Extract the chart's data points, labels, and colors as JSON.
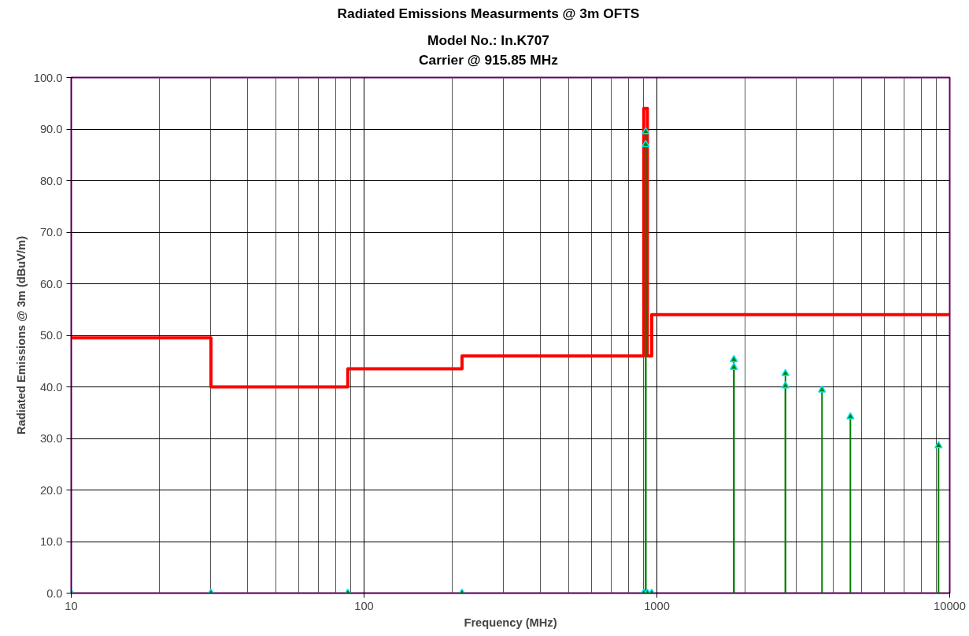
{
  "chart_data": {
    "type": "line",
    "title": "Radiated Emissions Measurments @ 3m OFTS",
    "subtitle": "Model No.: In.K707\nCarrier @ 915.85 MHz",
    "xlabel": "Frequency (MHz)",
    "ylabel": "Radiated Emissions @ 3m (dBuV/m)",
    "log": "x",
    "grid": true,
    "xlim": [
      10,
      10000
    ],
    "xticks": [
      10,
      100,
      1000,
      10000
    ],
    "ylim": [
      0,
      100
    ],
    "yticks": [
      {
        "value": 0,
        "label": "0.0"
      },
      {
        "value": 10,
        "label": "10.0"
      },
      {
        "value": 20,
        "label": "20.0"
      },
      {
        "value": 30,
        "label": "30.0"
      },
      {
        "value": 40,
        "label": "40.0"
      },
      {
        "value": 50,
        "label": "50.0"
      },
      {
        "value": 60,
        "label": "60.0"
      },
      {
        "value": 70,
        "label": "70.0"
      },
      {
        "value": 80,
        "label": "80.0"
      },
      {
        "value": 90,
        "label": "90.0"
      },
      {
        "value": 100,
        "label": "100.0"
      }
    ],
    "series": [
      {
        "color": "#ff0000",
        "marker": "none",
        "x": [
          10,
          30,
          30,
          88,
          88,
          216,
          216,
          902,
          902,
          928,
          928,
          960,
          960,
          10000
        ],
        "values": [
          49.5,
          49.5,
          40,
          40,
          43.5,
          43.5,
          46,
          46,
          94,
          94,
          46,
          46,
          54,
          54
        ]
      },
      {
        "type": "lollipop",
        "color": "#008000",
        "marker": "triangle",
        "x": [
          10,
          30,
          88,
          216,
          902,
          928,
          960,
          915.85,
          915.85,
          1831.7,
          1831.7,
          2747.55,
          2747.55,
          3663.4,
          4579.25,
          9158.5
        ],
        "values": [
          0,
          0,
          0,
          0,
          0,
          0,
          0,
          89.5,
          87.0,
          45.3,
          43.8,
          42.6,
          40.2,
          39.4,
          34.2,
          28.6
        ]
      }
    ]
  }
}
